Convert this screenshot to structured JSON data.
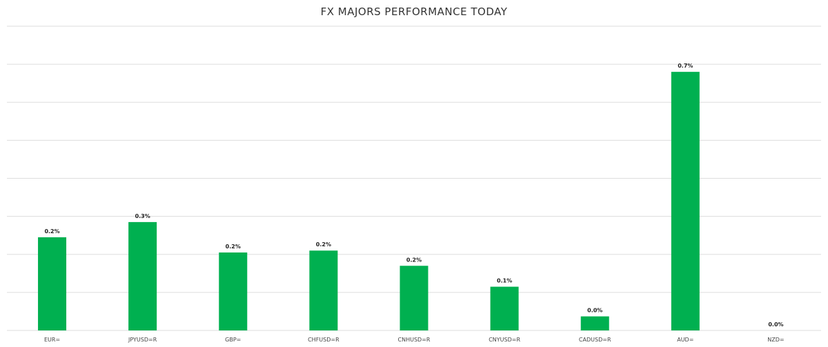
{
  "chart_data": {
    "type": "bar",
    "title": "FX MAJORS PERFORMANCE TODAY",
    "xlabel": "",
    "ylabel": "",
    "categories": [
      "EUR=",
      "JPYUSD=R",
      "GBP=",
      "CHFUSD=R",
      "CNHUSD=R",
      "CNYUSD=R",
      "CADUSD=R",
      "AUD=",
      "NZD="
    ],
    "values": [
      0.245,
      0.285,
      0.205,
      0.21,
      0.17,
      0.115,
      0.037,
      0.68,
      0.0
    ],
    "data_labels": [
      "0.2%",
      "0.3%",
      "0.2%",
      "0.2%",
      "0.2%",
      "0.1%",
      "0.0%",
      "0.7%",
      "0.0%"
    ],
    "ylim": [
      0,
      0.8
    ],
    "grid": true,
    "bar_color": "#00b050",
    "grid_color": "#dddddd"
  }
}
